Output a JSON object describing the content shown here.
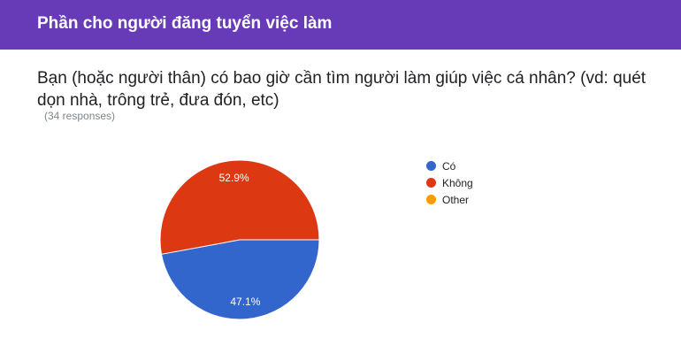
{
  "header": {
    "title": "Phần cho người đăng tuyển việc làm",
    "color": "#673ab7"
  },
  "question": {
    "text": "Bạn (hoặc người thân) có bao giờ cần tìm người làm giúp việc cá nhân? (vd: quét dọn nhà, trông trẻ, đưa đón, etc)",
    "responses": "(34 responses)"
  },
  "chart_data": {
    "type": "pie",
    "categories": [
      "Có",
      "Không",
      "Other"
    ],
    "values": [
      47.1,
      52.9,
      0
    ],
    "data_labels": [
      "47.1%",
      "52.9%",
      ""
    ],
    "colors": [
      "#3366cc",
      "#dc3912",
      "#ff9900"
    ],
    "legend_position": "right"
  }
}
